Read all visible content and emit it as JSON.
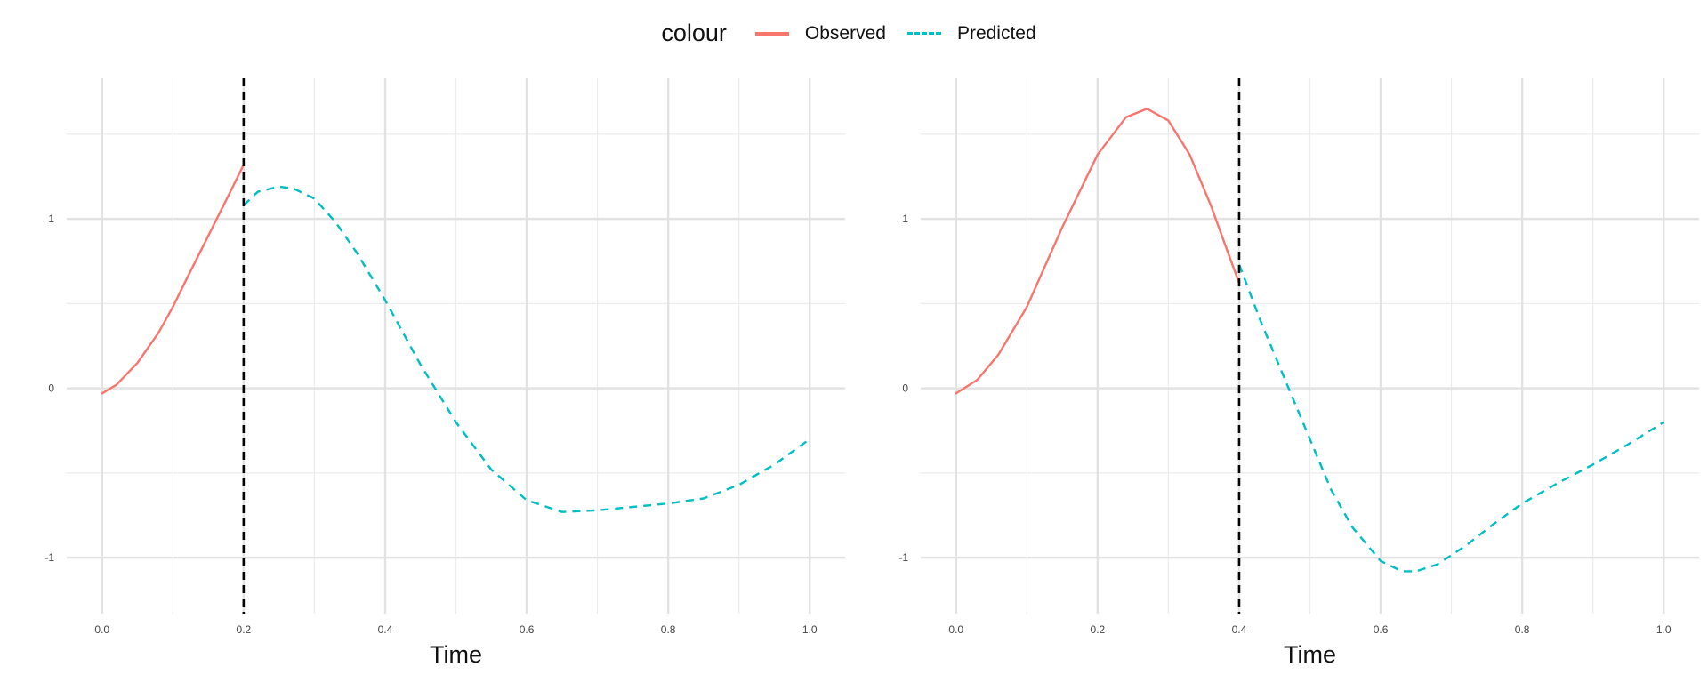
{
  "legend": {
    "title": "colour",
    "items": [
      {
        "label": "Observed",
        "color": "#F8766D"
      },
      {
        "label": "Predicted",
        "color": "#00BFC4"
      }
    ]
  },
  "chart_data": [
    {
      "type": "line",
      "title": "",
      "xlabel": "Time",
      "ylabel": "",
      "xlim": [
        -0.05,
        1.05
      ],
      "ylim": [
        -1.33,
        1.83
      ],
      "x_ticks": [
        "0.0",
        "0.2",
        "0.4",
        "0.6",
        "0.8",
        "1.0"
      ],
      "y_ticks": [
        "-1",
        "0",
        "1"
      ],
      "grid": true,
      "cutoff": 0.2,
      "series": [
        {
          "name": "Observed",
          "color": "#F8766D",
          "dashed": false,
          "x": [
            0.0,
            0.02,
            0.05,
            0.08,
            0.1,
            0.12,
            0.15,
            0.18,
            0.2
          ],
          "y": [
            -0.03,
            0.02,
            0.15,
            0.33,
            0.48,
            0.65,
            0.9,
            1.15,
            1.32
          ]
        },
        {
          "name": "Predicted",
          "color": "#00BFC4",
          "dashed": true,
          "x": [
            0.2,
            0.22,
            0.25,
            0.27,
            0.3,
            0.33,
            0.36,
            0.4,
            0.45,
            0.5,
            0.55,
            0.6,
            0.65,
            0.7,
            0.75,
            0.8,
            0.85,
            0.9,
            0.95,
            1.0
          ],
          "y": [
            1.08,
            1.16,
            1.19,
            1.18,
            1.12,
            0.98,
            0.8,
            0.52,
            0.14,
            -0.2,
            -0.48,
            -0.66,
            -0.73,
            -0.72,
            -0.7,
            -0.68,
            -0.65,
            -0.57,
            -0.45,
            -0.3
          ]
        }
      ]
    },
    {
      "type": "line",
      "title": "",
      "xlabel": "Time",
      "ylabel": "",
      "xlim": [
        -0.05,
        1.05
      ],
      "ylim": [
        -1.33,
        1.83
      ],
      "x_ticks": [
        "0.0",
        "0.2",
        "0.4",
        "0.6",
        "0.8",
        "1.0"
      ],
      "y_ticks": [
        "-1",
        "0",
        "1"
      ],
      "grid": true,
      "cutoff": 0.4,
      "series": [
        {
          "name": "Observed",
          "color": "#F8766D",
          "dashed": false,
          "x": [
            0.0,
            0.03,
            0.06,
            0.1,
            0.15,
            0.2,
            0.24,
            0.27,
            0.3,
            0.33,
            0.36,
            0.38,
            0.4
          ],
          "y": [
            -0.03,
            0.05,
            0.2,
            0.48,
            0.95,
            1.38,
            1.6,
            1.65,
            1.58,
            1.38,
            1.08,
            0.85,
            0.62
          ]
        },
        {
          "name": "Predicted",
          "color": "#00BFC4",
          "dashed": true,
          "x": [
            0.4,
            0.43,
            0.47,
            0.5,
            0.53,
            0.56,
            0.6,
            0.63,
            0.65,
            0.68,
            0.72,
            0.76,
            0.8,
            0.85,
            0.9,
            0.95,
            1.0
          ],
          "y": [
            0.73,
            0.4,
            0.0,
            -0.3,
            -0.6,
            -0.82,
            -1.02,
            -1.08,
            -1.08,
            -1.04,
            -0.93,
            -0.8,
            -0.68,
            -0.56,
            -0.45,
            -0.33,
            -0.2
          ]
        }
      ]
    }
  ]
}
